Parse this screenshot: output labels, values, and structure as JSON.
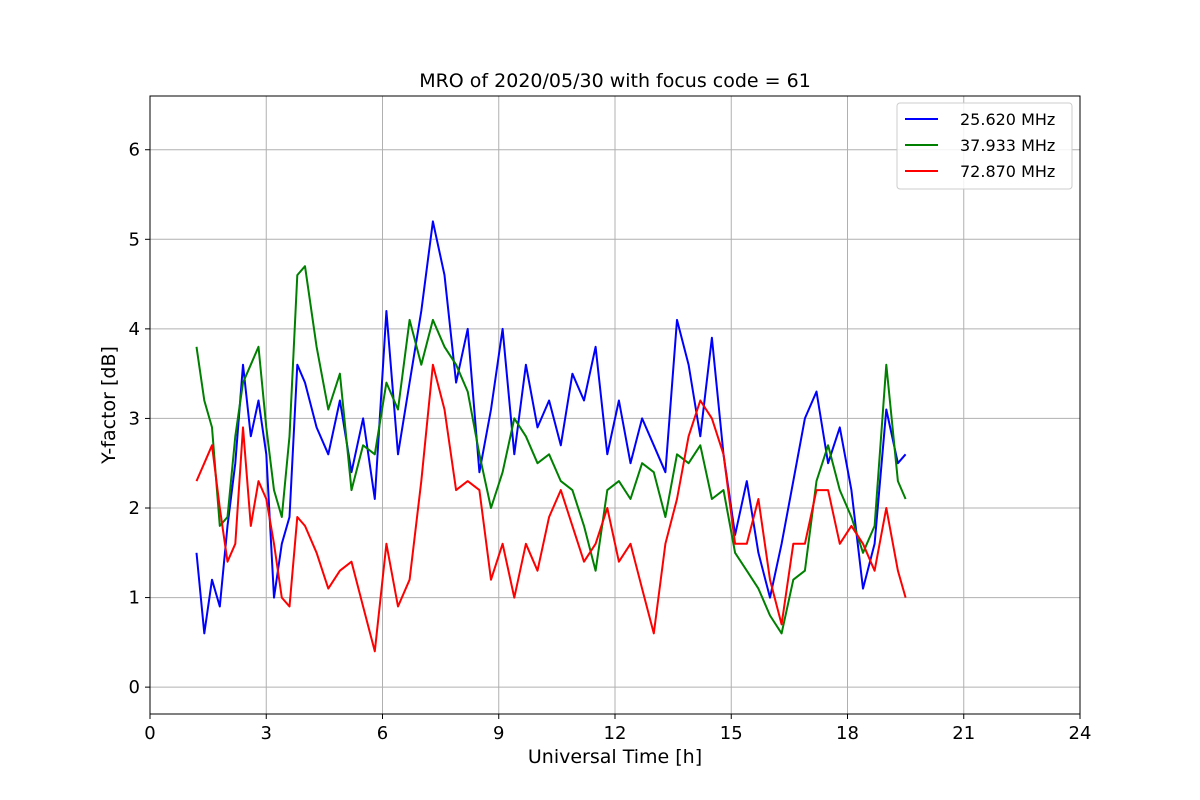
{
  "chart_data": {
    "type": "line",
    "title": "MRO of 2020/05/30 with focus code = 61",
    "xlabel": "Universal Time [h]",
    "ylabel": "Y-factor [dB]",
    "xlim": [
      0,
      24
    ],
    "ylim": [
      -0.3,
      6.6
    ],
    "xticks": [
      0,
      3,
      6,
      9,
      12,
      15,
      18,
      21,
      24
    ],
    "yticks": [
      0,
      1,
      2,
      3,
      4,
      5,
      6
    ],
    "grid": true,
    "legend_position": "top-right",
    "series": [
      {
        "name": "25.620 MHz",
        "color": "#0000ff",
        "x": [
          1.2,
          1.4,
          1.6,
          1.8,
          2.0,
          2.2,
          2.4,
          2.6,
          2.8,
          3.0,
          3.2,
          3.4,
          3.6,
          3.8,
          4.0,
          4.3,
          4.6,
          4.9,
          5.2,
          5.5,
          5.8,
          6.1,
          6.4,
          6.7,
          7.0,
          7.3,
          7.6,
          7.9,
          8.2,
          8.5,
          8.8,
          9.1,
          9.4,
          9.7,
          10.0,
          10.3,
          10.6,
          10.9,
          11.2,
          11.5,
          11.8,
          12.1,
          12.4,
          12.7,
          13.0,
          13.3,
          13.6,
          13.9,
          14.2,
          14.5,
          14.8,
          15.1,
          15.4,
          15.7,
          16.0,
          16.3,
          16.6,
          16.9,
          17.2,
          17.5,
          17.8,
          18.1,
          18.4,
          18.7,
          19.0,
          19.3,
          19.5
        ],
        "values": [
          1.5,
          0.6,
          1.2,
          0.9,
          1.8,
          2.5,
          3.6,
          2.8,
          3.2,
          2.6,
          1.0,
          1.6,
          1.9,
          3.6,
          3.4,
          2.9,
          2.6,
          3.2,
          2.4,
          3.0,
          2.1,
          4.2,
          2.6,
          3.4,
          4.2,
          5.2,
          4.6,
          3.4,
          4.0,
          2.4,
          3.1,
          4.0,
          2.6,
          3.6,
          2.9,
          3.2,
          2.7,
          3.5,
          3.2,
          3.8,
          2.6,
          3.2,
          2.5,
          3.0,
          2.7,
          2.4,
          4.1,
          3.6,
          2.8,
          3.9,
          2.6,
          1.7,
          2.3,
          1.5,
          1.0,
          1.6,
          2.3,
          3.0,
          3.3,
          2.5,
          2.9,
          2.2,
          1.1,
          1.6,
          3.1,
          2.5,
          2.6
        ]
      },
      {
        "name": "37.933 MHz",
        "color": "#008000",
        "x": [
          1.2,
          1.4,
          1.6,
          1.8,
          2.0,
          2.2,
          2.4,
          2.6,
          2.8,
          3.0,
          3.2,
          3.4,
          3.6,
          3.8,
          4.0,
          4.3,
          4.6,
          4.9,
          5.2,
          5.5,
          5.8,
          6.1,
          6.4,
          6.7,
          7.0,
          7.3,
          7.6,
          7.9,
          8.2,
          8.5,
          8.8,
          9.1,
          9.4,
          9.7,
          10.0,
          10.3,
          10.6,
          10.9,
          11.2,
          11.5,
          11.8,
          12.1,
          12.4,
          12.7,
          13.0,
          13.3,
          13.6,
          13.9,
          14.2,
          14.5,
          14.8,
          15.1,
          15.4,
          15.7,
          16.0,
          16.3,
          16.6,
          16.9,
          17.2,
          17.5,
          17.8,
          18.1,
          18.4,
          18.7,
          19.0,
          19.3,
          19.5
        ],
        "values": [
          3.8,
          3.2,
          2.9,
          1.8,
          1.9,
          2.8,
          3.4,
          3.6,
          3.8,
          2.9,
          2.2,
          1.9,
          2.8,
          4.6,
          4.7,
          3.8,
          3.1,
          3.5,
          2.2,
          2.7,
          2.6,
          3.4,
          3.1,
          4.1,
          3.6,
          4.1,
          3.8,
          3.6,
          3.3,
          2.6,
          2.0,
          2.4,
          3.0,
          2.8,
          2.5,
          2.6,
          2.3,
          2.2,
          1.8,
          1.3,
          2.2,
          2.3,
          2.1,
          2.5,
          2.4,
          1.9,
          2.6,
          2.5,
          2.7,
          2.1,
          2.2,
          1.5,
          1.3,
          1.1,
          0.8,
          0.6,
          1.2,
          1.3,
          2.3,
          2.7,
          2.2,
          1.9,
          1.5,
          1.8,
          3.6,
          2.3,
          2.1
        ]
      },
      {
        "name": "72.870 MHz",
        "color": "#ff0000",
        "x": [
          1.2,
          1.4,
          1.6,
          1.8,
          2.0,
          2.2,
          2.4,
          2.6,
          2.8,
          3.0,
          3.2,
          3.4,
          3.6,
          3.8,
          4.0,
          4.3,
          4.6,
          4.9,
          5.2,
          5.5,
          5.8,
          6.1,
          6.4,
          6.7,
          7.0,
          7.3,
          7.6,
          7.9,
          8.2,
          8.5,
          8.8,
          9.1,
          9.4,
          9.7,
          10.0,
          10.3,
          10.6,
          10.9,
          11.2,
          11.5,
          11.8,
          12.1,
          12.4,
          12.7,
          13.0,
          13.3,
          13.6,
          13.9,
          14.2,
          14.5,
          14.8,
          15.1,
          15.4,
          15.7,
          16.0,
          16.3,
          16.6,
          16.9,
          17.2,
          17.5,
          17.8,
          18.1,
          18.4,
          18.7,
          19.0,
          19.3,
          19.5
        ],
        "values": [
          2.3,
          2.5,
          2.7,
          2.0,
          1.4,
          1.6,
          2.9,
          1.8,
          2.3,
          2.1,
          1.6,
          1.0,
          0.9,
          1.9,
          1.8,
          1.5,
          1.1,
          1.3,
          1.4,
          0.9,
          0.4,
          1.6,
          0.9,
          1.2,
          2.3,
          3.6,
          3.1,
          2.2,
          2.3,
          2.2,
          1.2,
          1.6,
          1.0,
          1.6,
          1.3,
          1.9,
          2.2,
          1.8,
          1.4,
          1.6,
          2.0,
          1.4,
          1.6,
          1.1,
          0.6,
          1.6,
          2.1,
          2.8,
          3.2,
          3.0,
          2.6,
          1.6,
          1.6,
          2.1,
          1.2,
          0.7,
          1.6,
          1.6,
          2.2,
          2.2,
          1.6,
          1.8,
          1.6,
          1.3,
          2.0,
          1.3,
          1.0
        ]
      }
    ]
  }
}
